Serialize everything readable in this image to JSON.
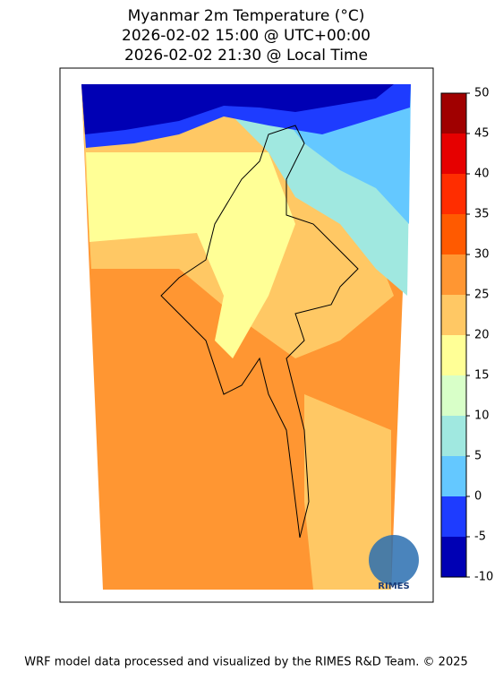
{
  "title": [
    "Myanmar 2m Temperature (°C)",
    "2026-02-02 15:00 @ UTC+00:00",
    "2026-02-02 21:30 @ Local Time"
  ],
  "colorbar": {
    "ticks": [
      -10,
      -5,
      0,
      5,
      10,
      15,
      20,
      25,
      30,
      35,
      40,
      45,
      50
    ],
    "colors": [
      "#0000b4",
      "#1e3cff",
      "#64c8ff",
      "#a0e8e0",
      "#d8ffc8",
      "#ffff96",
      "#ffc864",
      "#ff9632",
      "#ff5a00",
      "#ff2d00",
      "#e60000",
      "#a00000"
    ]
  },
  "logo_text": "RIMES",
  "footer": "WRF model data processed and visualized by the RIMES R&D Team. © 2025"
}
